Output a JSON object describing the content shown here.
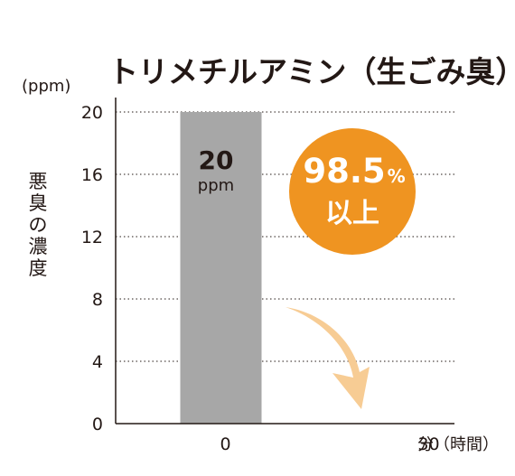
{
  "chart_data": {
    "type": "bar",
    "title": "トリメチルアミン（生ごみ臭）",
    "ylabel": "悪臭の濃度",
    "yunit": "(ppm)",
    "xlabel": "分（時間）",
    "categories": [
      "0",
      "30"
    ],
    "values": [
      20,
      0
    ],
    "ylim": [
      0,
      20
    ],
    "yticks": [
      0,
      4,
      8,
      12,
      16,
      20
    ],
    "bar_label": {
      "value": "20",
      "unit": "ppm"
    },
    "badge": {
      "value": "98.5",
      "unit": "%",
      "text": "以上"
    },
    "grid": "dotted",
    "colors": {
      "bar": "#a7a7a7",
      "badge": "#ef9421",
      "arrow": "#f7cc94",
      "text": "#231815"
    }
  }
}
